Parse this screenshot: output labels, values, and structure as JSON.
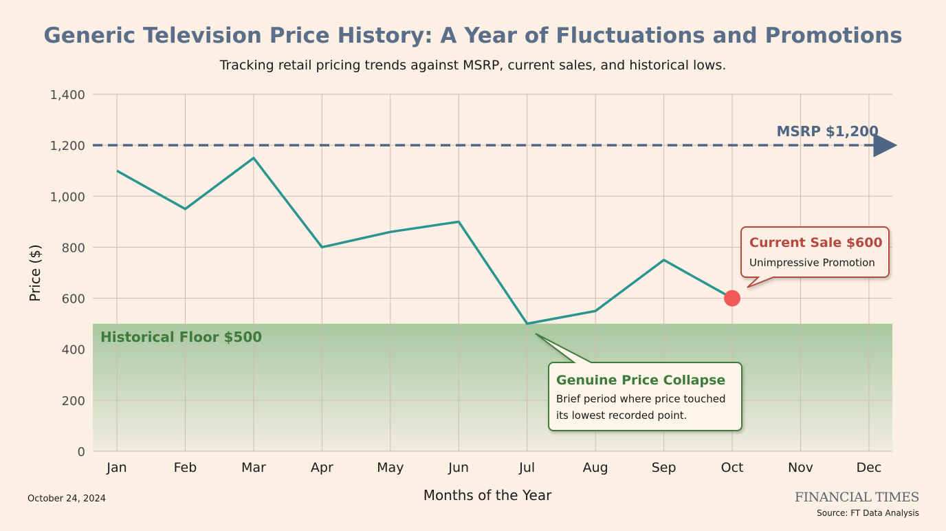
{
  "chart_data": {
    "type": "line",
    "title": "Generic Television Price History: A Year of Fluctuations and Promotions",
    "subtitle": "Tracking retail pricing trends against MSRP, current sales, and historical lows.",
    "xlabel": "Months of the Year",
    "ylabel": "Price ($)",
    "categories": [
      "Jan",
      "Feb",
      "Mar",
      "Apr",
      "May",
      "Jun",
      "Jul",
      "Aug",
      "Sep",
      "Oct",
      "Nov",
      "Dec"
    ],
    "values": [
      1100,
      950,
      1150,
      800,
      860,
      900,
      500,
      550,
      750,
      600,
      null,
      null
    ],
    "ylim": [
      0,
      1400
    ],
    "yticks": [
      0,
      200,
      400,
      600,
      800,
      1000,
      1200,
      1400
    ],
    "ytick_labels": [
      "0",
      "200",
      "400",
      "600",
      "800",
      "1,000",
      "1,200",
      "1,400"
    ],
    "grid": true,
    "reference_lines": {
      "msrp": {
        "value": 1200,
        "label": "MSRP $1,200",
        "color": "#4f6585"
      },
      "floor": {
        "value": 500,
        "label": "Historical Floor $500",
        "color": "#3f7a3c"
      }
    },
    "annotations": {
      "current_sale": {
        "month": "Oct",
        "value": 600,
        "title": "Current Sale $600",
        "text": "Unimpressive Promotion",
        "color": "#b5493f"
      },
      "collapse": {
        "month": "Jul",
        "value": 500,
        "title": "Genuine Price Collapse",
        "line1": "Brief period where price touched",
        "line2": "its lowest recorded point.",
        "color": "#3f7a3c"
      }
    },
    "line_color": "#2a9490",
    "marker_color": "#f25a57"
  },
  "footer": {
    "date": "October 24, 2024",
    "brand": "FINANCIAL TIMES",
    "source": "Source: FT Data Analysis"
  }
}
